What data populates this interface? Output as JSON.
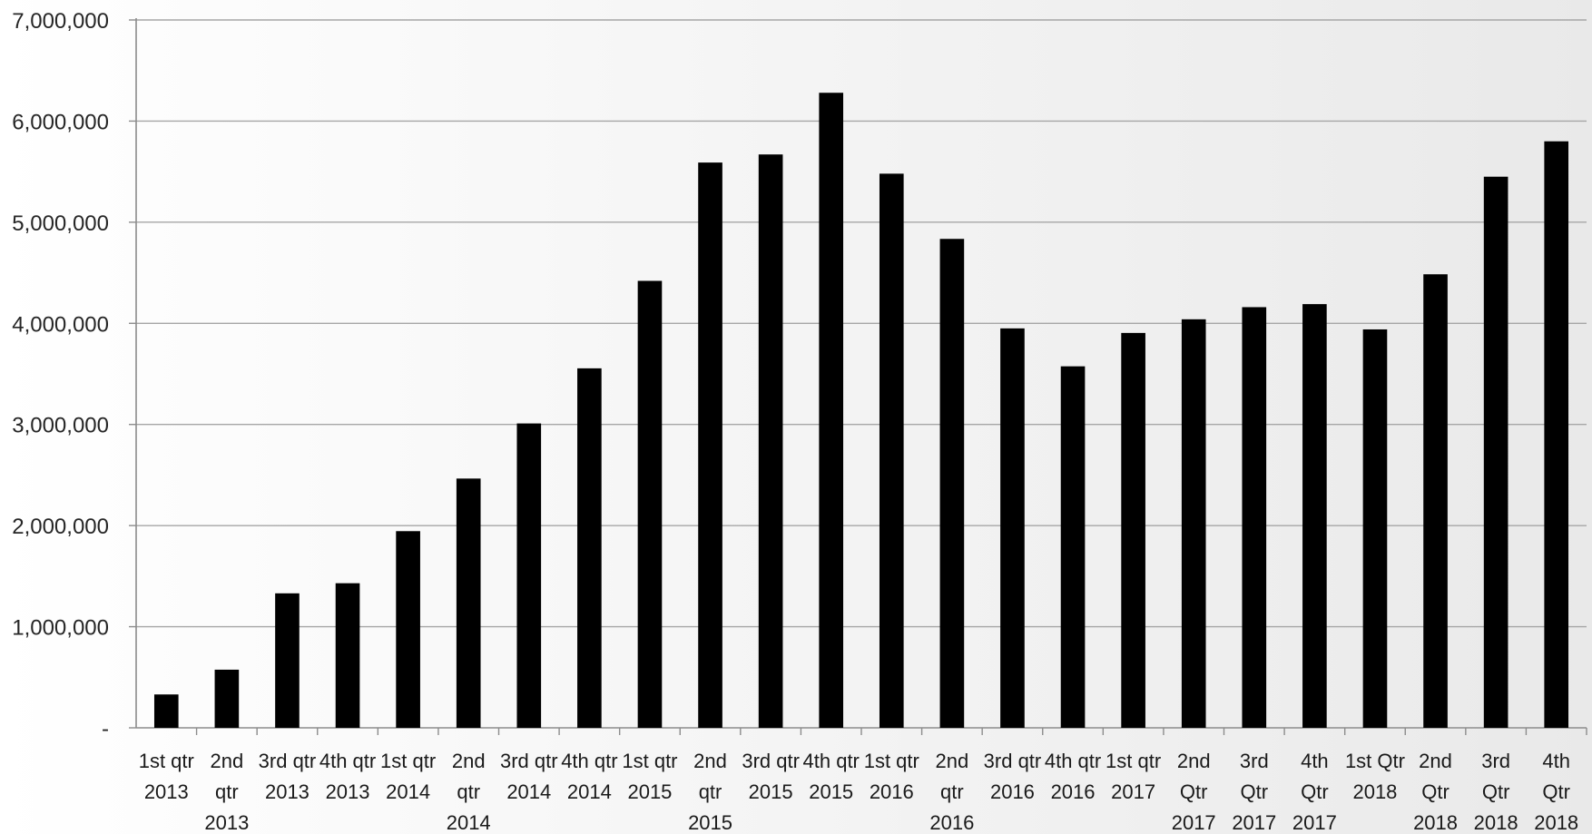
{
  "chart_data": {
    "type": "bar",
    "title": "",
    "xlabel": "",
    "ylabel": "",
    "ylim": [
      0,
      7000000
    ],
    "grid": true,
    "legend": "none",
    "bar_color": "#000000",
    "gridline_color": "#a6a6a6",
    "axis_color": "#8c8c8c",
    "background_gradient": [
      "#ffffff",
      "#e9e9e9"
    ],
    "y_ticks": [
      0,
      1000000,
      2000000,
      3000000,
      4000000,
      5000000,
      6000000,
      7000000
    ],
    "y_tick_labels": [
      "-",
      "1,000,000",
      "2,000,000",
      "3,000,000",
      "4,000,000",
      "5,000,000",
      "6,000,000",
      "7,000,000"
    ],
    "categories": [
      "1st qtr 2013",
      "2nd qtr 2013",
      "3rd qtr 2013",
      "4th qtr 2013",
      "1st qtr 2014",
      "2nd qtr 2014",
      "3rd qtr 2014",
      "4th qtr 2014",
      "1st qtr 2015",
      "2nd qtr 2015",
      "3rd qtr 2015",
      "4th qtr 2015",
      "1st qtr 2016",
      "2nd qtr 2016",
      "3rd qtr 2016",
      "4th qtr 2016",
      "1st qtr 2017",
      "2nd Qtr 2017",
      "3rd Qtr 2017",
      "4th Qtr 2017",
      "1st Qtr 2018",
      "2nd Qtr 2018",
      "3rd Qtr 2018",
      "4th Qtr 2018"
    ],
    "category_label_lines": [
      [
        "1st qtr",
        "2013"
      ],
      [
        "2nd",
        "qtr",
        "2013"
      ],
      [
        "3rd qtr",
        "2013"
      ],
      [
        "4th qtr",
        "2013"
      ],
      [
        "1st qtr",
        "2014"
      ],
      [
        "2nd",
        "qtr",
        "2014"
      ],
      [
        "3rd qtr",
        "2014"
      ],
      [
        "4th qtr",
        "2014"
      ],
      [
        "1st qtr",
        "2015"
      ],
      [
        "2nd",
        "qtr",
        "2015"
      ],
      [
        "3rd qtr",
        "2015"
      ],
      [
        "4th qtr",
        "2015"
      ],
      [
        "1st qtr",
        "2016"
      ],
      [
        "2nd",
        "qtr",
        "2016"
      ],
      [
        "3rd qtr",
        "2016"
      ],
      [
        "4th qtr",
        "2016"
      ],
      [
        "1st qtr",
        "2017"
      ],
      [
        "2nd",
        "Qtr",
        "2017"
      ],
      [
        "3rd",
        "Qtr",
        "2017"
      ],
      [
        "4th",
        "Qtr",
        "2017"
      ],
      [
        "1st Qtr",
        "2018"
      ],
      [
        "2nd",
        "Qtr",
        "2018"
      ],
      [
        "3rd",
        "Qtr",
        "2018"
      ],
      [
        "4th",
        "Qtr",
        "2018"
      ]
    ],
    "values": [
      330000,
      575000,
      1330000,
      1430000,
      1945000,
      2465000,
      3010000,
      3555000,
      4420000,
      5590000,
      5670000,
      6280000,
      5480000,
      4835000,
      3950000,
      3575000,
      3905000,
      4040000,
      4160000,
      4190000,
      3940000,
      4485000,
      5450000,
      5800000
    ]
  }
}
